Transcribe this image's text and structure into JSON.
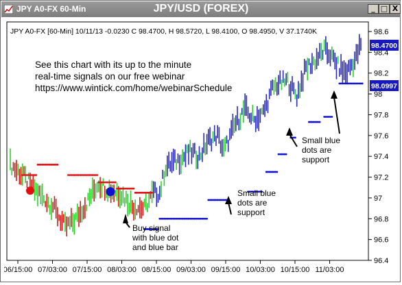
{
  "window": {
    "title_left": "JPY A0-FX 60-Min",
    "title_center": "JPY/USD (FOREX)",
    "buttons": {
      "minimize": "_",
      "maximize": "□",
      "close": "X"
    }
  },
  "chart_info": "JPY A0-FX [60-Min] 10/11/13  -0.0230 C 98.4700, H 98.5720, L 98.4100, O 98.4950, V 37.1740K",
  "promo": {
    "line1": "See this chart with its up to the minute",
    "line2": "real-time signals on our free webinar",
    "line3": "https://www.wintick.com/home/webinarSchedule"
  },
  "annotations": {
    "buy": [
      "Buy signal",
      "with blue dot",
      "and blue bar"
    ],
    "support1": [
      "Small blue",
      "dots are",
      "support"
    ],
    "support2": [
      "Small blue",
      "dots are",
      "support"
    ]
  },
  "price_badges": {
    "current": "98.4700",
    "support": "98.0997"
  },
  "colors": {
    "up_bar": "#2a2ab8",
    "down_bar": "#d81818",
    "green_bar": "#2ed02e",
    "red_dot": "#e01010",
    "blue_dot": "#1010d0",
    "badge_bg": "#1818c0"
  },
  "chart_data": {
    "type": "bar",
    "yticks": [
      "98.6",
      "98.4",
      "98.2",
      "98",
      "97.8",
      "97.6",
      "97.4",
      "97.2",
      "97",
      "96.8",
      "96.6",
      "96.4"
    ],
    "xticks": [
      "06/15:00",
      "07/03:00",
      "07/15:00",
      "08/03:00",
      "08/15:00",
      "09/03:00",
      "09/15:00",
      "10/03:00",
      "10/15:00",
      "11/03:00"
    ],
    "ylim": [
      96.4,
      98.6
    ],
    "last_close": 98.47,
    "support_level": 98.0997
  }
}
